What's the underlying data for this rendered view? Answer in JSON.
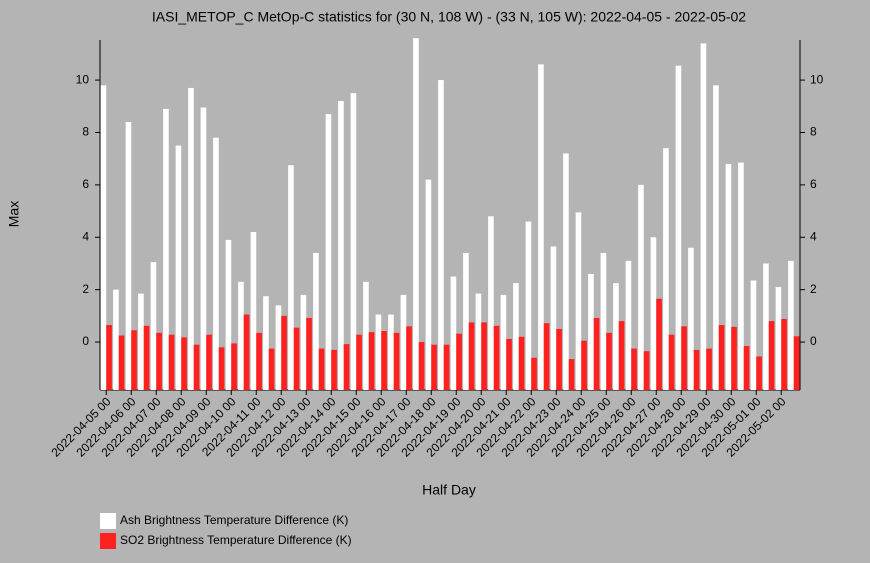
{
  "chart_data": {
    "type": "bar",
    "title": "IASI_METOP_C MetOp-C statistics for (30 N, 108 W) - (33 N, 105 W): 2022-04-05 - 2022-05-02",
    "x_label": "Half Day",
    "y_label": "Max",
    "categories": [
      "2022-04-05 00",
      null,
      "2022-04-06 00",
      null,
      "2022-04-07 00",
      null,
      "2022-04-08 00",
      null,
      "2022-04-09 00",
      null,
      "2022-04-10 00",
      null,
      "2022-04-11 00",
      null,
      "2022-04-12 00",
      null,
      "2022-04-13 00",
      null,
      "2022-04-14 00",
      null,
      "2022-04-15 00",
      null,
      "2022-04-16 00",
      null,
      "2022-04-17 00",
      null,
      "2022-04-18 00",
      null,
      "2022-04-19 00",
      null,
      "2022-04-20 00",
      null,
      "2022-04-21 00",
      null,
      "2022-04-22 00",
      null,
      "2022-04-23 00",
      null,
      "2022-04-24 00",
      null,
      "2022-04-25 00",
      null,
      "2022-04-26 00",
      null,
      "2022-04-27 00",
      null,
      "2022-04-28 00",
      null,
      "2022-04-29 00",
      null,
      "2022-04-30 00",
      null,
      "2022-05-01 00",
      null,
      "2022-05-02 00",
      null
    ],
    "series": [
      {
        "name": "Ash Brightness Temperature Difference (K)",
        "color": "#ffffff",
        "values": [
          9.8,
          2.0,
          8.4,
          1.85,
          3.05,
          8.9,
          7.5,
          9.7,
          8.95,
          7.8,
          3.9,
          2.3,
          4.2,
          1.75,
          1.4,
          6.75,
          1.8,
          3.4,
          8.7,
          9.2,
          9.5,
          2.3,
          1.05,
          1.05,
          1.8,
          11.6,
          6.2,
          10.0,
          2.5,
          3.4,
          1.85,
          4.8,
          1.8,
          2.25,
          4.6,
          10.6,
          3.65,
          7.2,
          4.95,
          2.6,
          3.4,
          2.25,
          3.1,
          6.0,
          4.0,
          7.4,
          10.55,
          3.6,
          11.4,
          9.8,
          6.8,
          6.85,
          2.35,
          3.0,
          2.1,
          3.1
        ]
      },
      {
        "name": "SO2 Brightness Temperature Difference (K)",
        "color": "#ff2020",
        "values": [
          0.65,
          0.25,
          0.45,
          0.62,
          0.35,
          0.28,
          0.18,
          -0.1,
          0.28,
          -0.2,
          -0.05,
          1.05,
          0.35,
          -0.25,
          1.0,
          0.55,
          0.92,
          -0.25,
          -0.3,
          -0.08,
          0.28,
          0.38,
          0.42,
          0.35,
          0.6,
          0.0,
          -0.1,
          -0.1,
          0.32,
          0.75,
          0.75,
          0.62,
          0.12,
          0.2,
          -0.6,
          0.72,
          0.5,
          -0.65,
          0.05,
          0.92,
          0.35,
          0.8,
          -0.25,
          -0.35,
          1.65,
          0.28,
          0.6,
          -0.3,
          -0.25,
          0.65,
          0.58,
          -0.15,
          -0.55,
          0.8,
          0.88,
          0.22
        ]
      }
    ],
    "ylim": [
      -1.83,
      11.53
    ],
    "yticks": [
      0,
      2,
      4,
      6,
      8,
      10
    ],
    "right_axis": true
  }
}
